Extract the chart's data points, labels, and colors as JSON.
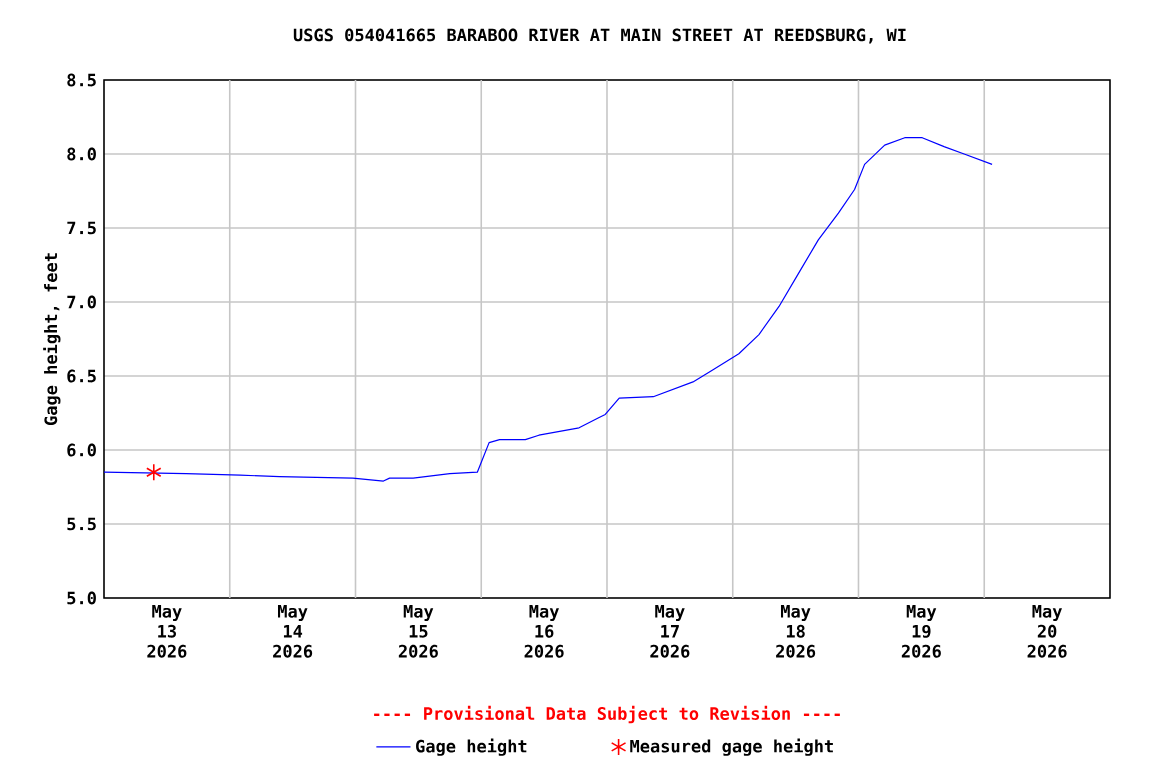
{
  "chart_data": {
    "type": "line",
    "title": "USGS 054041665 BARABOO RIVER AT MAIN STREET AT REEDSBURG, WI",
    "ylabel": "Gage height, feet",
    "xlim": [
      "2026-05-13",
      "2026-05-21"
    ],
    "xticks": [
      {
        "value": "2026-05-13T12:00",
        "label": "May 13 2026"
      },
      {
        "value": "2026-05-14T12:00",
        "label": "May 14 2026"
      },
      {
        "value": "2026-05-15T12:00",
        "label": "May 15 2026"
      },
      {
        "value": "2026-05-16T12:00",
        "label": "May 16 2026"
      },
      {
        "value": "2026-05-17T12:00",
        "label": "May 17 2026"
      },
      {
        "value": "2026-05-18T12:00",
        "label": "May 18 2026"
      },
      {
        "value": "2026-05-19T12:00",
        "label": "May 19 2026"
      },
      {
        "value": "2026-05-20T12:00",
        "label": "May 20 2026"
      },
      {
        "value": "2026-05-14",
        "label": null
      },
      {
        "value": "2026-05-15",
        "label": null
      },
      {
        "value": "2026-05-16",
        "label": null
      },
      {
        "value": "2026-05-17",
        "label": null
      },
      {
        "value": "2026-05-18",
        "label": null
      },
      {
        "value": "2026-05-19",
        "label": null
      },
      {
        "value": "2026-05-20",
        "label": null
      }
    ],
    "ylim": [
      5.0,
      8.5
    ],
    "yticks": [
      {
        "value": 5.0,
        "label": "5.0"
      },
      {
        "value": 5.5,
        "label": "5.5"
      },
      {
        "value": 6.0,
        "label": "6.0"
      },
      {
        "value": 6.5,
        "label": "6.5"
      },
      {
        "value": 7.0,
        "label": "7.0"
      },
      {
        "value": 7.5,
        "label": "7.5"
      },
      {
        "value": 8.0,
        "label": "8.0"
      },
      {
        "value": 8.5,
        "label": "8.5"
      }
    ],
    "grid": true,
    "legend": "bottom",
    "annotations": [
      "---- Provisional Data Subject to Revision ----"
    ],
    "series": [
      {
        "name": "Gage height",
        "type": "line",
        "color": "#0000ff",
        "marker": "none",
        "x": [
          "2026-05-13T00:00",
          "2026-05-13T15:40",
          "2026-05-14T02:00",
          "2026-05-14T09:30",
          "2026-05-14T23:30",
          "2026-05-15T05:20",
          "2026-05-15T06:30",
          "2026-05-15T11:00",
          "2026-05-15T18:00",
          "2026-05-15T23:15",
          "2026-05-16T01:30",
          "2026-05-16T03:30",
          "2026-05-16T08:25",
          "2026-05-16T11:00",
          "2026-05-16T18:40",
          "2026-05-16T22:30",
          "2026-05-16T23:40",
          "2026-05-17T02:20",
          "2026-05-17T08:50",
          "2026-05-17T16:25",
          "2026-05-17T20:10",
          "2026-05-18T01:10",
          "2026-05-18T05:00",
          "2026-05-18T08:50",
          "2026-05-18T12:30",
          "2026-05-18T16:20",
          "2026-05-18T20:10",
          "2026-05-18T23:15",
          "2026-05-19T01:10",
          "2026-05-19T05:00",
          "2026-05-19T08:50",
          "2026-05-19T12:10",
          "2026-05-19T16:20",
          "2026-05-19T20:10",
          "2026-05-20T01:30"
        ],
        "values": [
          5.85,
          5.84,
          5.83,
          5.82,
          5.81,
          5.79,
          5.81,
          5.81,
          5.84,
          5.85,
          6.05,
          6.07,
          6.07,
          6.1,
          6.15,
          6.22,
          6.24,
          6.35,
          6.36,
          6.46,
          6.54,
          6.65,
          6.78,
          6.97,
          7.19,
          7.42,
          7.6,
          7.76,
          7.93,
          8.06,
          8.11,
          8.11,
          8.05,
          8.0,
          7.93
        ]
      },
      {
        "name": "Measured gage height",
        "type": "scatter",
        "color": "#ff0000",
        "marker": "cross",
        "x": [
          "2026-05-13T09:30"
        ],
        "values": [
          5.85
        ]
      }
    ]
  }
}
